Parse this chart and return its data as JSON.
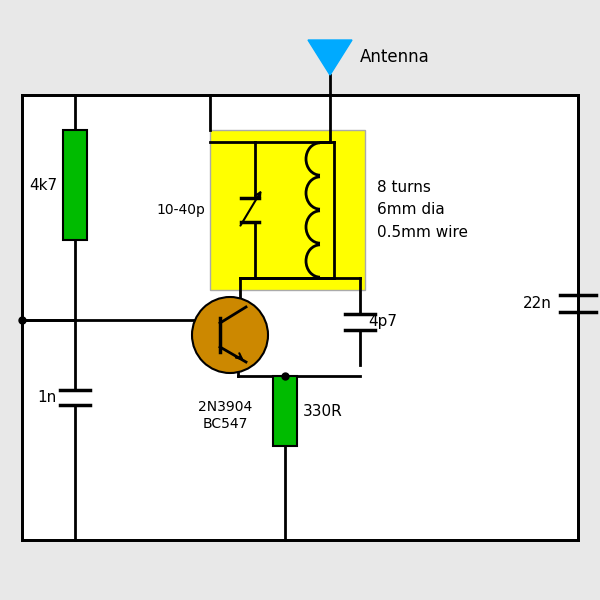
{
  "bg_color": "#e8e8e8",
  "circuit_bg": "#ffffff",
  "wire_color": "#000000",
  "resistor_color": "#00bb00",
  "transistor_color": "#cc8800",
  "lc_bg_color": "#ffff00",
  "antenna_color": "#00aaff",
  "lw": 2.0,
  "components": {
    "R1": "4k7",
    "R2": "330R",
    "C1": "1n",
    "C2": "4p7",
    "C3": "22n",
    "LC_label": "10-40p",
    "inductor_label": "8 turns\n6mm dia\n0.5mm wire",
    "transistor_label": "2N3904\nBC547",
    "antenna_label": "Antenna"
  }
}
